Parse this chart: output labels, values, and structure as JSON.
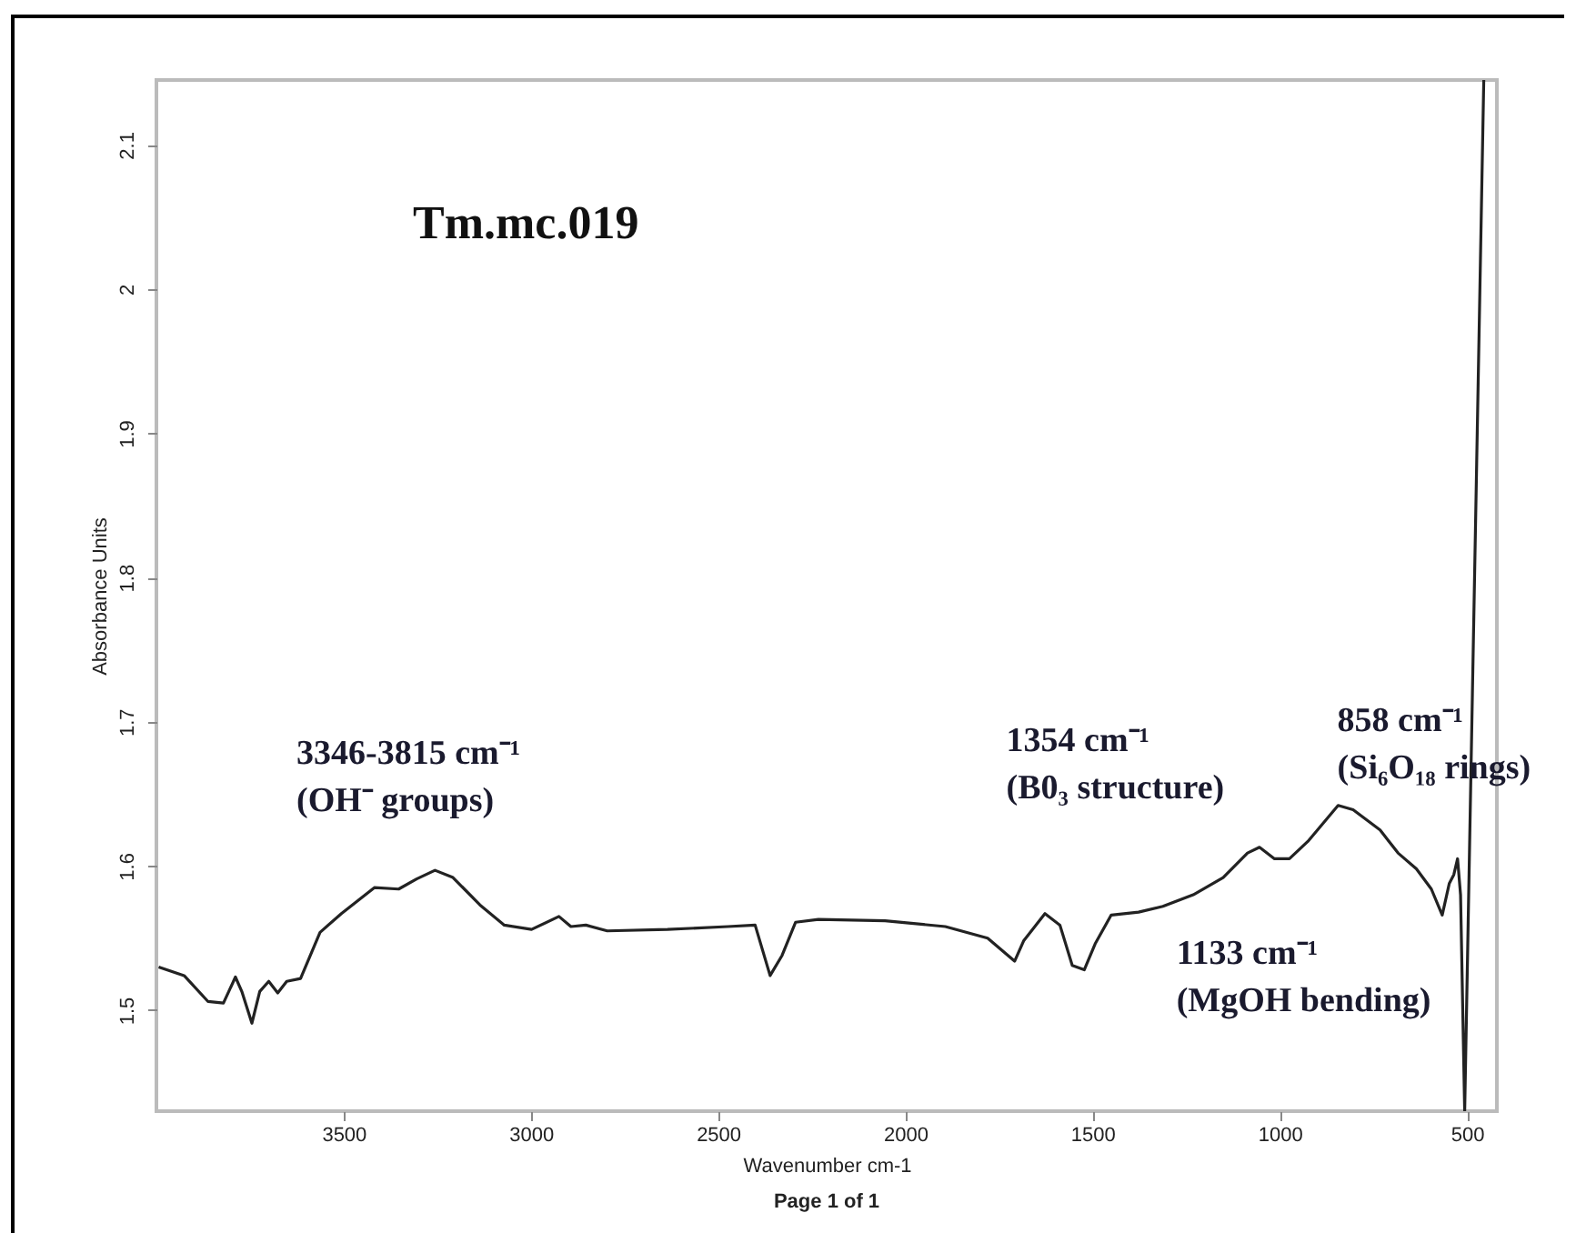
{
  "chart_data": {
    "type": "line",
    "title": "Tm.mc.019",
    "xlabel": "Wavenumber cm-1",
    "ylabel": "Absorbance Units",
    "xlim": [
      4000,
      420
    ],
    "ylim": [
      1.43,
      2.145
    ],
    "xticks": [
      3500,
      3000,
      2500,
      2000,
      1500,
      1000,
      500
    ],
    "yticks": [
      1.5,
      1.6,
      1.7,
      1.8,
      1.9,
      2.0,
      2.1
    ],
    "grid": false,
    "line_style": "solid",
    "series": [
      {
        "color": "#222222",
        "x": [
          3994,
          3926,
          3862,
          3821,
          3789,
          3772,
          3745,
          3724,
          3700,
          3676,
          3652,
          3615,
          3563,
          3506,
          3418,
          3353,
          3305,
          3256,
          3208,
          3136,
          3071,
          2998,
          2925,
          2893,
          2853,
          2796,
          2635,
          2474,
          2401,
          2361,
          2329,
          2293,
          2232,
          2054,
          1893,
          1780,
          1708,
          1684,
          1627,
          1587,
          1554,
          1522,
          1493,
          1450,
          1377,
          1312,
          1231,
          1151,
          1086,
          1054,
          1014,
          974,
          925,
          844,
          804,
          732,
          684,
          635,
          595,
          566,
          547,
          535,
          525,
          517,
          506,
          455
        ],
        "values": [
          1.53,
          1.524,
          1.506,
          1.505,
          1.523,
          1.513,
          1.491,
          1.513,
          1.52,
          1.512,
          1.52,
          1.522,
          1.554,
          1.567,
          1.585,
          1.584,
          1.591,
          1.597,
          1.592,
          1.573,
          1.559,
          1.556,
          1.565,
          1.558,
          1.559,
          1.555,
          1.556,
          1.558,
          1.559,
          1.524,
          1.538,
          1.561,
          1.563,
          1.562,
          1.558,
          1.55,
          1.534,
          1.548,
          1.567,
          1.559,
          1.531,
          1.528,
          1.546,
          1.566,
          1.568,
          1.572,
          1.58,
          1.592,
          1.609,
          1.613,
          1.605,
          1.605,
          1.617,
          1.642,
          1.639,
          1.625,
          1.609,
          1.598,
          1.584,
          1.566,
          1.588,
          1.594,
          1.605,
          1.58,
          1.43,
          2.145
        ]
      }
    ],
    "annotations": [
      "3346-3815 cm⁻¹\n(OH⁻ groups)",
      "1354 cm⁻¹\n(B0₃ structure)",
      "858 cm⁻¹\n(Si₆O₁₈ rings)",
      "1133 cm⁻¹\n(MgOH bending)",
      "Page 1 of 1"
    ]
  }
}
